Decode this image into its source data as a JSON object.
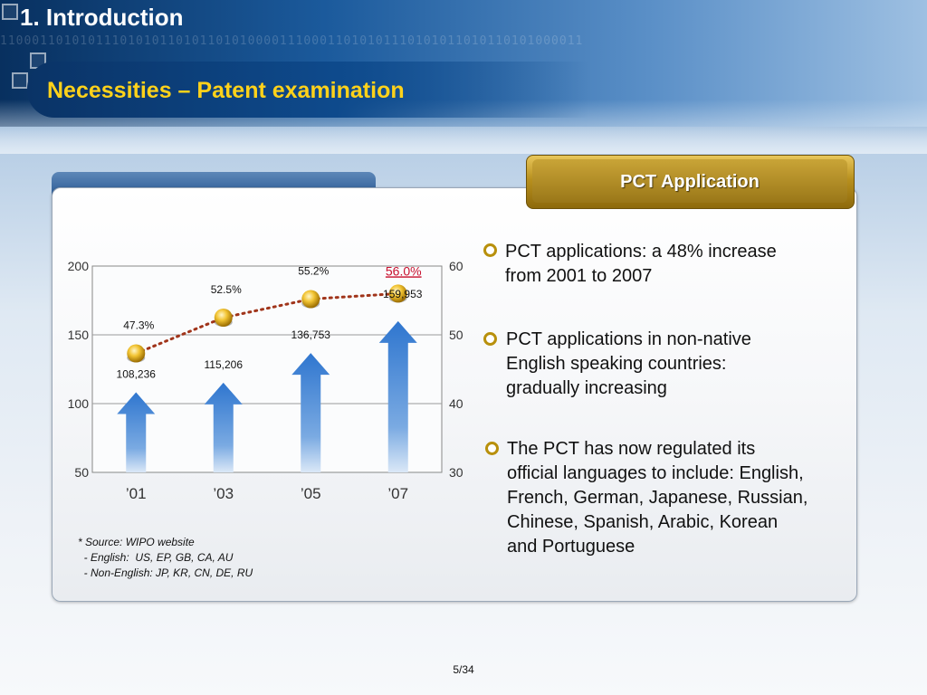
{
  "header": {
    "section": "1. Introduction",
    "subtitle": "Necessities – Patent examination"
  },
  "panel": {
    "tab_title": "PCT Application"
  },
  "bullets": [
    {
      "lines": [
        "PCT applications: a 48% increase",
        "from 2001 to 2007"
      ]
    },
    {
      "lines": [
        "PCT applications in non-native",
        "English speaking countries:",
        "gradually increasing"
      ]
    },
    {
      "lines": [
        "The PCT has now regulated its",
        "official languages to include: English,",
        "French, German, Japanese, Russian,",
        "Chinese, Spanish, Arabic, Korean",
        "and Portuguese"
      ]
    }
  ],
  "source": {
    "lines": [
      "* Source: WIPO website",
      "  - English:  US, EP, GB, CA, AU",
      "  - Non-English: JP, KR, CN, DE, RU"
    ]
  },
  "page": "5/34",
  "colors": {
    "arrow": "#2f76cf",
    "trend_line": "#a0341a",
    "highlight_label": "#c8102e",
    "accent_gold": "#b8900c",
    "subtitle": "#ffd21a"
  },
  "chart_data": {
    "type": "bar",
    "categories": [
      "’01",
      "’03",
      "’05",
      "’07"
    ],
    "values": [
      108236,
      115206,
      136753,
      159953
    ],
    "value_labels": [
      "108,236",
      "115,206",
      "136,753",
      "159,953"
    ],
    "left_axis": {
      "ticks": [
        "200",
        "150",
        "100",
        "50"
      ],
      "range": [
        50,
        200
      ],
      "unit_scale": 1000
    },
    "right_axis": {
      "ticks": [
        "60",
        "50",
        "40",
        "30"
      ],
      "range": [
        30,
        60
      ]
    },
    "line_series": {
      "values": [
        47.3,
        52.5,
        55.2,
        56.0
      ],
      "labels": [
        "47.3%",
        "52.5%",
        "55.2%",
        "56.0%"
      ],
      "highlight_index": 3
    },
    "grid": true
  }
}
